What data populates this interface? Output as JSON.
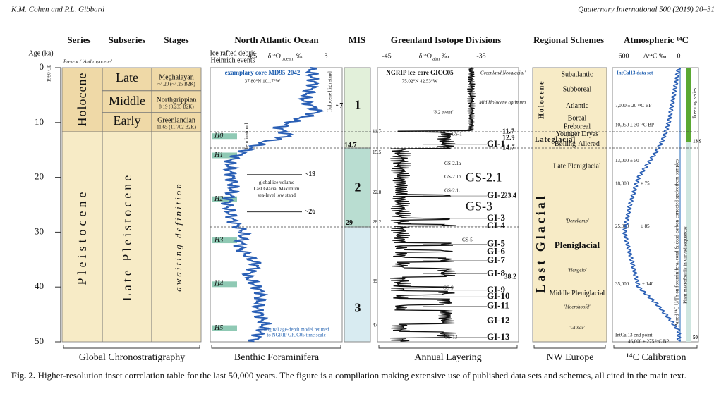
{
  "header": {
    "authors": "K.M. Cohen and P.L. Gibbard",
    "journal": "Quaternary International 500 (2019) 20–31"
  },
  "columns": {
    "series": "Series",
    "subseries": "Subseries",
    "stages": "Stages",
    "ocean": "North Atlantic Ocean",
    "mis": "MIS",
    "greenland": "Greenland Isotope Divisions",
    "regional": "Regional Schemes",
    "carbon": "Atmospheric ¹⁴C"
  },
  "age_axis": {
    "label": "Age (ka)",
    "reference": "1950 CE",
    "ticks": [
      0,
      10,
      20,
      30,
      40,
      50
    ]
  },
  "chrono": {
    "present": "Present / 'Anthropocene'",
    "holocene": "Holocene",
    "pleistocene": "Pleistocene",
    "late": "Late",
    "middle": "Middle",
    "early": "Early",
    "late_pleistocene": "Late Pleistocene",
    "awaiting": "awaiting definition",
    "stages": [
      {
        "name": "Meghalayan",
        "age": "~4.20 (~4.25 B2K)"
      },
      {
        "name": "Northgrippian",
        "age": "8.19 (8.235 B2K)"
      },
      {
        "name": "Greenlandian",
        "age": "11.65 (11.702 B2K)"
      }
    ]
  },
  "benthic": {
    "ird": "Ice rafted debris",
    "heinrich": "Heinrich events",
    "tick_left": "4.5",
    "tick_right": "3",
    "proxy": "δ¹⁸O",
    "proxy_sub": "ocean",
    "unit": "‰",
    "core": "examplary core MD95-2042",
    "coords": "37.80°N 10.17°W",
    "highstand": "Holocene high stand",
    "hs_age": "~7",
    "termination": "Termination I",
    "events": [
      "H0",
      "H1",
      "H2",
      "H3",
      "H4",
      "H5"
    ],
    "lgm_start": "~19",
    "lgm": [
      "global ice volume",
      "Last Glacial Maximum",
      "sea-level low stand"
    ],
    "lgm_end": "~26",
    "note": [
      "original age-depth model retuned",
      "to NGRIP GICC05 time scale"
    ]
  },
  "mis": {
    "stages": [
      "1",
      "2",
      "3"
    ],
    "boundaries": [
      "14.7",
      "29"
    ]
  },
  "greenland": {
    "tick_left": "-45",
    "tick_right": "-35",
    "proxy": "δ¹⁸O",
    "proxy_sub": "atm",
    "unit": "‰",
    "core": "NGRIP ice-core GICC05",
    "coords": "75.02°N 42.53°W",
    "neoglacial": "'Greenland Neoglacial'",
    "event82": "'8.2 event'",
    "optimum": "Mid Holocene optimum",
    "left_ages": [
      "11.7",
      "15.5",
      "22.8",
      "28.2",
      "39",
      "47"
    ],
    "stadials": [
      "GS-1",
      "GS-2.1a",
      "GS-2.1b",
      "GS-2.1",
      "GS-2.1c",
      "GS-3",
      "GS-5",
      "GS-9",
      "GS-13"
    ],
    "interstadials": [
      "GI-1",
      "GI-2",
      "GI-3",
      "GI-4",
      "GI-5",
      "GI-6",
      "GI-7",
      "GI-8",
      "GI-9",
      "GI-10",
      "GI-11",
      "GI-12",
      "GI-13"
    ],
    "right_ages": [
      "11.7",
      "12.9",
      "14.7",
      "23.4",
      "38.2"
    ]
  },
  "regional": {
    "periods": [
      "Subatlantic",
      "Subboreal",
      "Atlantic",
      "Boreal",
      "Preboreal",
      "Younger Dryas",
      "Bølling-Allerød"
    ],
    "holocene": "Holocene",
    "lateglacial": "Lateglacial",
    "last_glacial": "Last Glacial",
    "phases": [
      "Late Pleniglacial",
      "'Denekamp'",
      "Pleniglacial",
      "'Hengelo'",
      "Middle Pleniglacial",
      "'Moershoofd'",
      "'Glinde'"
    ]
  },
  "carbon": {
    "tick_left": "600",
    "tick_right": "0",
    "unit": "Δ¹⁴C ‰",
    "dataset": "IntCal13 data set",
    "dates": [
      "7,000 ± 20 ¹⁴C BP",
      "10,050 ± 30 ¹⁴C BP",
      "13,000 ± 50",
      "18,000",
      "± 75",
      "25,000",
      "± 85",
      "35,000",
      "± 140",
      "IntCal13 end point",
      "46,000 ± 275 ¹⁴C BP"
    ],
    "tree": "Tree ring series",
    "macro": "Plant macrofossils in varved sequences",
    "paired": "Paired ¹⁴C U/Th on foraminifera, coral & dead-carbon corrected speleothem samples",
    "tree_end": "13.9",
    "end": "50"
  },
  "footers": [
    "Global Chronostratigraphy",
    "Benthic Foraminifera",
    "Annual Layering",
    "NW Europe",
    "¹⁴C Calibration"
  ],
  "caption": {
    "label": "Fig. 2.",
    "text": "Higher-resolution inset correlation table for the last 50,000 years. The figure is a compilation making extensive use of published data sets and schemes, all cited in the main text."
  }
}
